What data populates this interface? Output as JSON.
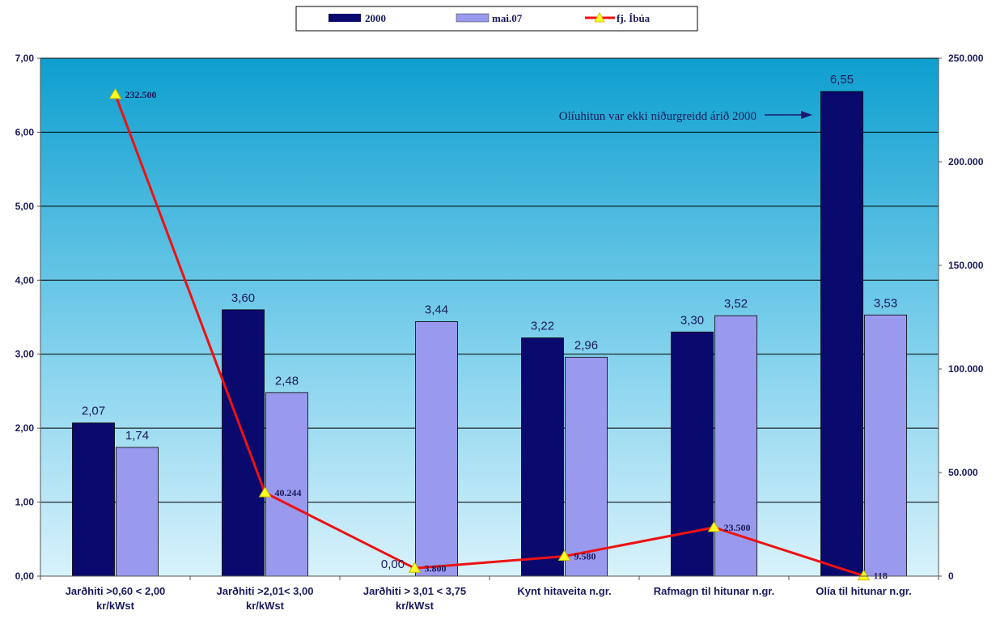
{
  "chart_data": {
    "type": "bar",
    "categories": [
      [
        "Jarðhiti >0,60 < 2,00",
        "kr/kWst"
      ],
      [
        "Jarðhiti >2,01< 3,00",
        "kr/kWst"
      ],
      [
        "Jarðhiti > 3,01 < 3,75",
        "kr/kWst"
      ],
      [
        "Kynt hitaveita n.gr."
      ],
      [
        "Rafmagn til hitunar n.gr."
      ],
      [
        "Olía til hitunar n.gr."
      ]
    ],
    "series": [
      {
        "name": "2000",
        "values": [
          2.07,
          3.6,
          0.0,
          3.22,
          3.3,
          6.55
        ],
        "labels": [
          "2,07",
          "3,60",
          "0,00",
          "3,22",
          "3,30",
          "6,55"
        ],
        "color": "#0a0a6e"
      },
      {
        "name": "mai.07",
        "values": [
          1.74,
          2.48,
          3.44,
          2.96,
          3.52,
          3.53
        ],
        "labels": [
          "1,74",
          "2,48",
          "3,44",
          "2,96",
          "3,52",
          "3,53"
        ],
        "color": "#9999ee"
      }
    ],
    "line_series": {
      "name": "fj. Íbúa",
      "axis": "right",
      "color": "#ee1111",
      "marker_color": "#ffff22",
      "values": [
        232500,
        40244,
        3800,
        9580,
        23500,
        118
      ],
      "labels": [
        "232.500",
        "40.244",
        "3.800",
        "9.580",
        "23.500",
        "118"
      ]
    },
    "ylim": [
      0,
      7
    ],
    "yticks": [
      "0,00",
      "1,00",
      "2,00",
      "3,00",
      "4,00",
      "5,00",
      "6,00",
      "7,00"
    ],
    "y2lim": [
      0,
      250000
    ],
    "y2ticks": [
      "0",
      "50.000",
      "100.000",
      "150.000",
      "200.000",
      "250.000"
    ],
    "annotation": "Olíuhitun var ekki niðurgreidd árið 2000",
    "legend_position": "top-center",
    "grid": true,
    "plot_background": "gradient #0d9fcf to #d8f2fb"
  }
}
